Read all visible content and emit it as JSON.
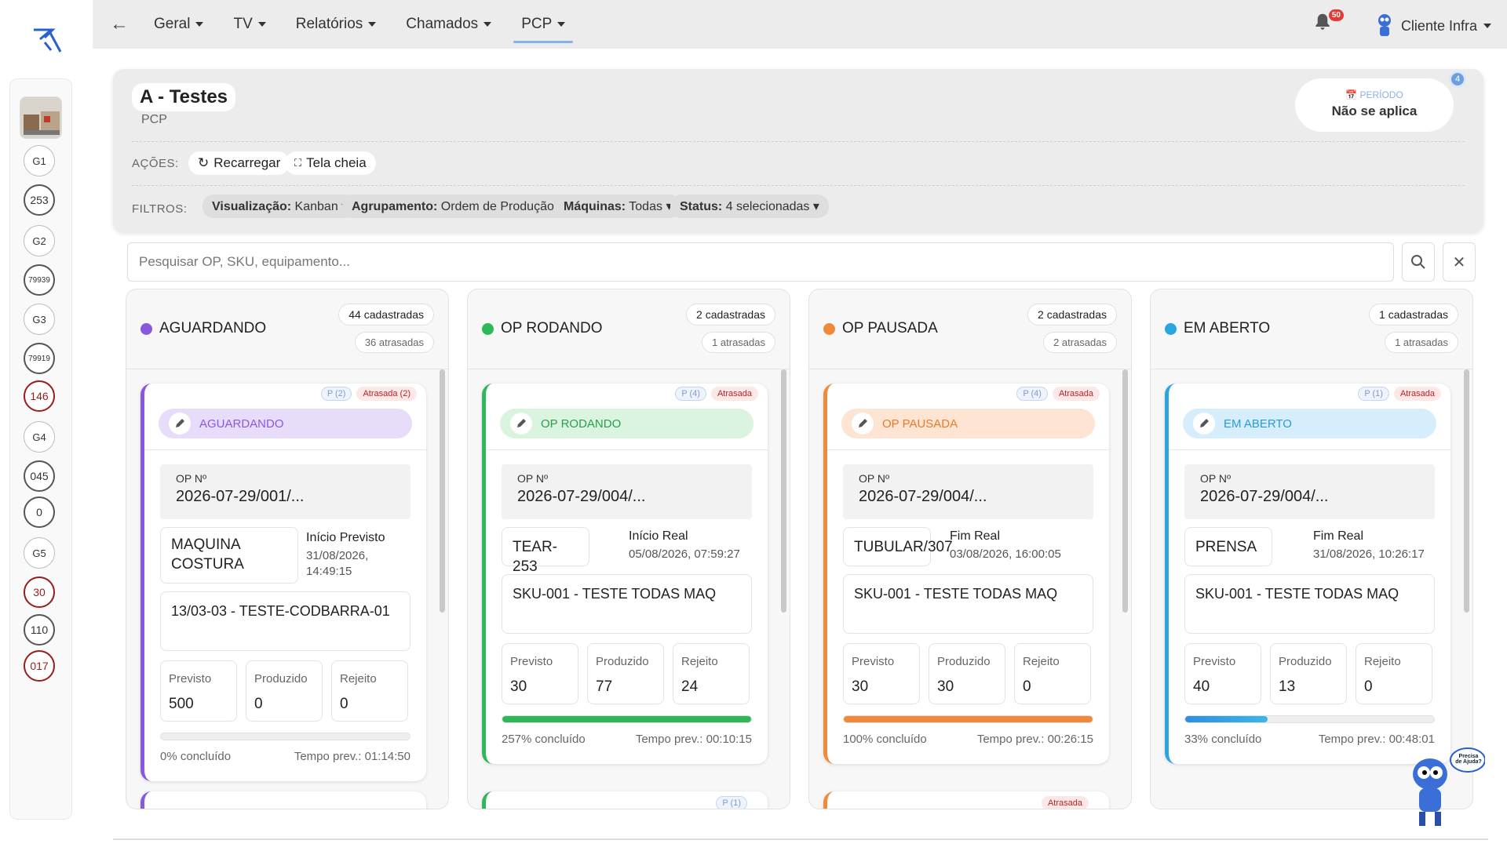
{
  "nav": {
    "back_icon": "arrow-left-icon",
    "items": [
      {
        "label": "Geral"
      },
      {
        "label": "TV"
      },
      {
        "label": "Relatórios"
      },
      {
        "label": "Chamados"
      },
      {
        "label": "PCP",
        "active": true
      }
    ],
    "notifications": "50",
    "user": "Cliente Infra"
  },
  "sidebar": {
    "items": [
      {
        "label": "G1",
        "style": "g"
      },
      {
        "label": "253",
        "style": "n"
      },
      {
        "label": "G2",
        "style": "g"
      },
      {
        "label": "79939",
        "style": "tiny"
      },
      {
        "label": "G3",
        "style": "g"
      },
      {
        "label": "79919",
        "style": "tiny"
      },
      {
        "label": "146",
        "style": "red"
      },
      {
        "label": "G4",
        "style": "g"
      },
      {
        "label": "045",
        "style": "n"
      },
      {
        "label": "0",
        "style": "n"
      },
      {
        "label": "G5",
        "style": "g"
      },
      {
        "label": "30",
        "style": "red"
      },
      {
        "label": "110",
        "style": "n"
      },
      {
        "label": "017",
        "style": "red"
      }
    ]
  },
  "header": {
    "title": "A - Testes",
    "subtitle": "PCP",
    "period_label": "PERÍODO",
    "period_value": "Não se aplica",
    "period_badge": "4",
    "actions_label": "AÇÕES:",
    "reload": "Recarregar",
    "fullscreen": "Tela cheia",
    "filters_label": "FILTROS:",
    "filters": [
      {
        "k": "Visualização:",
        "v": "Kanban"
      },
      {
        "k": "Agrupamento:",
        "v": "Ordem de Produção"
      },
      {
        "k": "Máquinas:",
        "v": "Todas"
      },
      {
        "k": "Status:",
        "v": "4 selecionadas"
      }
    ]
  },
  "search": {
    "placeholder": "Pesquisar OP, SKU, equipamento..."
  },
  "colors": {
    "purple": "#8a58e0",
    "green": "#2fb85a",
    "orange": "#f08a3a",
    "blue": "#2ca4e0"
  },
  "columns": [
    {
      "title": "AGUARDANDO",
      "registered": "44 cadastradas",
      "late": "36 atrasadas",
      "color": "#8a58e0",
      "pill_bg": "#e7dcfa",
      "pill_color": "#8a58e0",
      "card": {
        "p_tag": "P (2)",
        "late_tag": "Atrasada (2)",
        "status": "AGUARDANDO",
        "op_label": "OP Nº",
        "op": "2026-07-29/001/...",
        "machine": "MAQUINA COSTURA",
        "date_label": "Início Previsto",
        "date": "31/08/2026, 14:49:15",
        "sku": "13/03-03 - TESTE-CODBARRA-01",
        "stats": [
          {
            "l": "Previsto",
            "v": "500"
          },
          {
            "l": "Produzido",
            "v": "0"
          },
          {
            "l": "Rejeito",
            "v": "0"
          }
        ],
        "progress": 0,
        "done": "0% concluído",
        "time": "Tempo prev.: 01:14:50"
      }
    },
    {
      "title": "OP RODANDO",
      "registered": "2 cadastradas",
      "late": "1 atrasadas",
      "color": "#2fb85a",
      "pill_bg": "#dbf4e0",
      "pill_color": "#2a9e4d",
      "card": {
        "p_tag": "P (4)",
        "late_tag": "Atrasada",
        "status": "OP RODANDO",
        "op_label": "OP Nº",
        "op": "2026-07-29/004/...",
        "machine": "TEAR-253",
        "date_label": "Início Real",
        "date": "05/08/2026, 07:59:27",
        "sku": "SKU-001 - TESTE TODAS MAQ",
        "stats": [
          {
            "l": "Previsto",
            "v": "30"
          },
          {
            "l": "Produzido",
            "v": "77"
          },
          {
            "l": "Rejeito",
            "v": "24"
          }
        ],
        "progress": 1,
        "done": "257% concluído",
        "time": "Tempo prev.: 00:10:15"
      },
      "next_tag": "P (1)"
    },
    {
      "title": "OP PAUSADA",
      "registered": "2 cadastradas",
      "late": "2 atrasadas",
      "color": "#f08a3a",
      "pill_bg": "#fde4d3",
      "pill_color": "#e87a2a",
      "card": {
        "p_tag": "P (4)",
        "late_tag": "Atrasada",
        "status": "OP PAUSADA",
        "op_label": "OP Nº",
        "op": "2026-07-29/004/...",
        "machine": "TUBULAR/307",
        "date_label": "Fim Real",
        "date": "03/08/2026, 16:00:05",
        "sku": "SKU-001 - TESTE TODAS MAQ",
        "stats": [
          {
            "l": "Previsto",
            "v": "30"
          },
          {
            "l": "Produzido",
            "v": "30"
          },
          {
            "l": "Rejeito",
            "v": "0"
          }
        ],
        "progress": 1,
        "done": "100% concluído",
        "time": "Tempo prev.: 00:26:15"
      },
      "next_tag": "Atrasada"
    },
    {
      "title": "EM ABERTO",
      "registered": "1 cadastradas",
      "late": "1 atrasadas",
      "color": "#2ca4e0",
      "pill_bg": "#d6eefb",
      "pill_color": "#2a9ad8",
      "card": {
        "p_tag": "P (1)",
        "late_tag": "Atrasada",
        "status": "EM ABERTO",
        "op_label": "OP Nº",
        "op": "2026-07-29/004/...",
        "machine": "PRENSA",
        "date_label": "Fim Real",
        "date": "31/08/2026, 10:26:17",
        "sku": "SKU-001 - TESTE TODAS MAQ",
        "stats": [
          {
            "l": "Previsto",
            "v": "40"
          },
          {
            "l": "Produzido",
            "v": "13"
          },
          {
            "l": "Rejeito",
            "v": "0"
          }
        ],
        "progress": 0.33,
        "done": "33% concluído",
        "time": "Tempo prev.: 00:48:01"
      }
    }
  ],
  "help": {
    "text": "Precisa de Ajuda?"
  }
}
